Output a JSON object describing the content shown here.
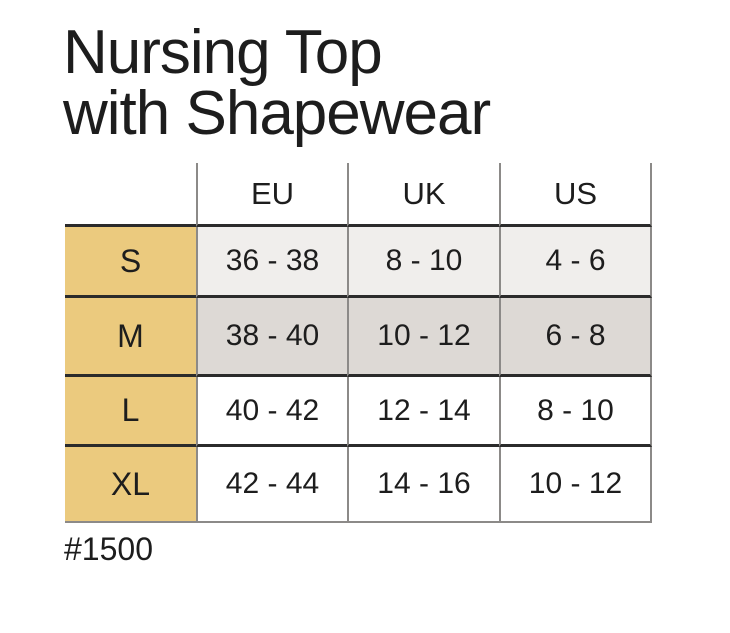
{
  "title": {
    "line1": "Nursing Top",
    "line2": "with Shapewear"
  },
  "chart_data": {
    "type": "table",
    "title": "Nursing Top with Shapewear",
    "columns": [
      "",
      "EU",
      "UK",
      "US"
    ],
    "rows": [
      [
        "S",
        "36 - 38",
        "8 - 10",
        "4 - 6"
      ],
      [
        "M",
        "38 - 40",
        "10 - 12",
        "6 - 8"
      ],
      [
        "L",
        "40 - 42",
        "12 - 14",
        "8 - 10"
      ],
      [
        "XL",
        "42 - 44",
        "14 - 16",
        "10 - 12"
      ]
    ],
    "footnote": "#1500"
  },
  "shades": {
    "s": "#f0eeec",
    "m": "#ddd9d5",
    "l": "#ffffff",
    "xl": "#ffffff"
  },
  "colors": {
    "background": "#ffffff",
    "size_column_bg": "#ebca7e",
    "grid_line": "#8c8a88",
    "row_divider": "#2b2b2b",
    "text": "#1d1d1d"
  }
}
